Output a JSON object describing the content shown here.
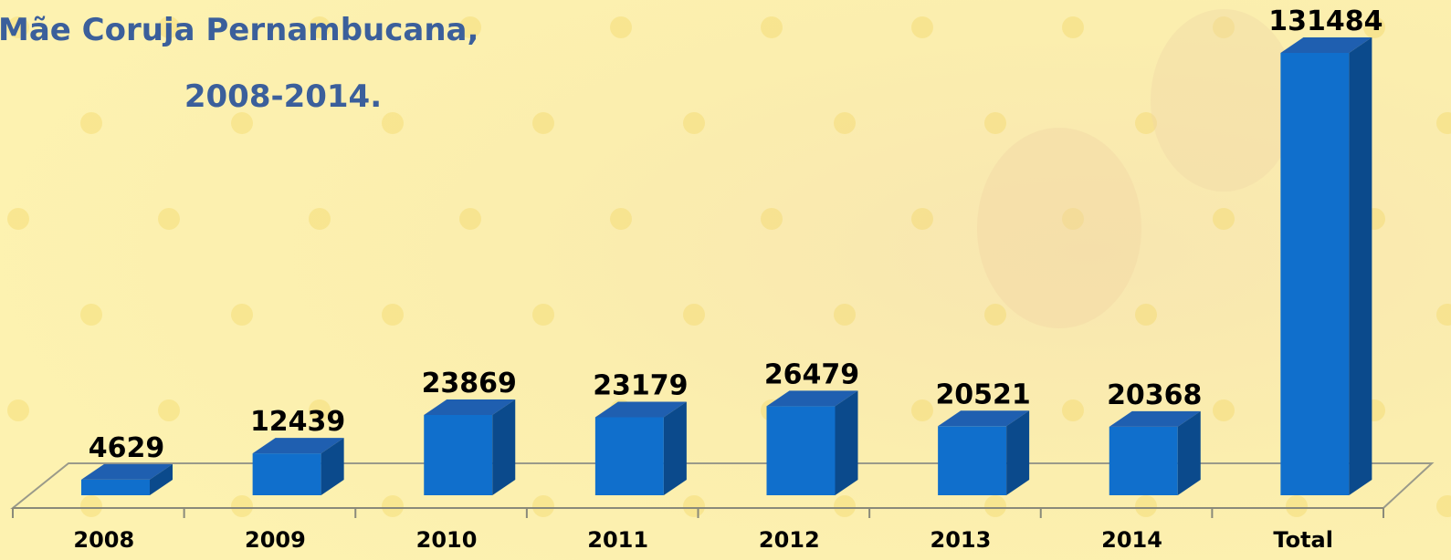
{
  "chart_data": {
    "type": "bar3d",
    "title": "Mãe Coruja Pernambucana,",
    "subtitle": "2008-2014.",
    "categories": [
      "2008",
      "2009",
      "2010",
      "2011",
      "2012",
      "2013",
      "2014",
      "Total"
    ],
    "values": [
      4629,
      12439,
      23869,
      23179,
      26479,
      20521,
      20368,
      131484
    ],
    "color": "#106fcc"
  }
}
